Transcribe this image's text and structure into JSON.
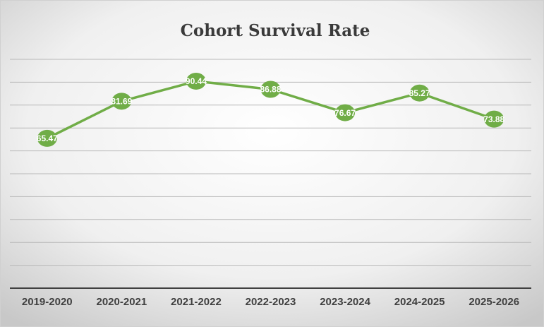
{
  "chart_data": {
    "type": "line",
    "title": "Cohort Survival Rate",
    "categories": [
      "2019-2020",
      "2020-2021",
      "2021-2022",
      "2022-2023",
      "2023-2024",
      "2024-2025",
      "2025-2026"
    ],
    "values": [
      65.47,
      81.69,
      90.44,
      86.88,
      76.67,
      85.27,
      73.88
    ],
    "color": "#70ad47",
    "ylim": [
      0,
      100
    ],
    "yticks": [
      0,
      10,
      20,
      30,
      40,
      50,
      60,
      70,
      80,
      90,
      100
    ],
    "grid": true
  }
}
